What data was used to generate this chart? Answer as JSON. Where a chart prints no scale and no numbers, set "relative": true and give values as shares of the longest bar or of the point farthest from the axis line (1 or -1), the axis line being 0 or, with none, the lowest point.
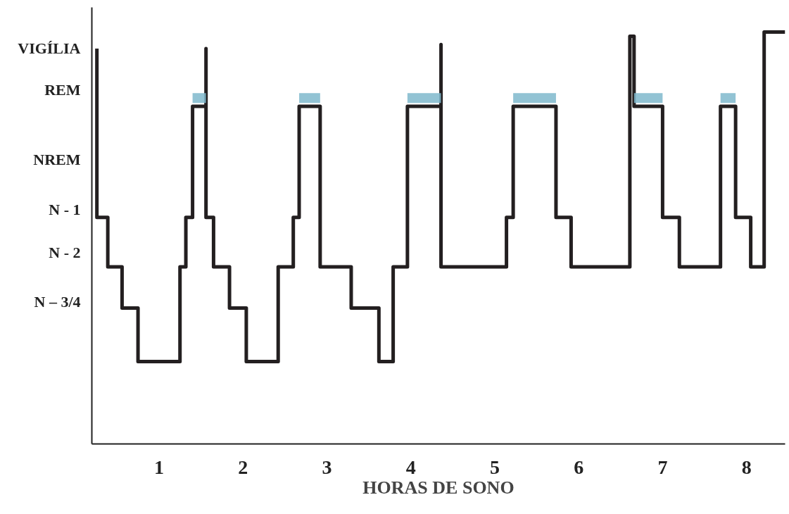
{
  "chart_data": {
    "type": "line",
    "xlabel": "HORAS DE SONO",
    "relative": true,
    "xlim": [
      0.2,
      8.46
    ],
    "xticks": [
      1,
      2,
      3,
      4,
      5,
      6,
      7,
      8
    ],
    "annotations": [
      "VIGÍLIA",
      "REM",
      "NREM",
      "N - 1",
      "N - 2",
      "N – 3/4"
    ],
    "grid": false,
    "marker": "none",
    "line_style": "solid",
    "series": [
      {
        "color": "#231f20",
        "x": [
          0.26,
          0.26,
          0.39,
          0.39,
          0.56,
          0.56,
          0.75,
          0.75,
          1.25,
          1.25,
          1.32,
          1.32,
          1.4,
          1.4,
          1.56,
          1.56,
          1.56,
          1.65,
          1.65,
          1.84,
          1.84,
          2.04,
          2.04,
          2.42,
          2.42,
          2.6,
          2.6,
          2.67,
          2.67,
          2.92,
          2.92,
          3.29,
          3.29,
          3.62,
          3.62,
          3.79,
          3.79,
          3.96,
          3.96,
          4.36,
          4.36,
          4.36,
          5.14,
          5.14,
          5.22,
          5.22,
          5.73,
          5.73,
          5.91,
          5.91,
          6.61,
          6.61,
          6.66,
          6.66,
          7.0,
          7.0,
          7.2,
          7.2,
          7.69,
          7.69,
          7.87,
          7.87,
          8.05,
          8.05,
          8.21,
          8.21,
          8.46
        ],
        "values": [
          0.96,
          0.55,
          0.55,
          0.43,
          0.43,
          0.33,
          0.33,
          0.2,
          0.2,
          0.43,
          0.43,
          0.55,
          0.55,
          0.82,
          0.82,
          0.96,
          0.55,
          0.55,
          0.43,
          0.43,
          0.33,
          0.33,
          0.2,
          0.2,
          0.43,
          0.43,
          0.55,
          0.55,
          0.82,
          0.82,
          0.43,
          0.43,
          0.33,
          0.33,
          0.2,
          0.2,
          0.43,
          0.43,
          0.82,
          0.82,
          0.97,
          0.43,
          0.43,
          0.55,
          0.55,
          0.82,
          0.82,
          0.55,
          0.55,
          0.43,
          0.43,
          0.99,
          0.99,
          0.82,
          0.82,
          0.55,
          0.55,
          0.43,
          0.43,
          0.82,
          0.82,
          0.55,
          0.55,
          0.43,
          0.43,
          1,
          1
        ]
      },
      {
        "color": "#7fb8cc",
        "x": [
          1.4,
          1.56,
          null,
          2.67,
          2.92,
          null,
          3.96,
          4.36,
          null,
          5.22,
          5.73,
          null,
          6.66,
          7.0,
          null,
          7.69,
          7.87
        ],
        "values": [
          0.84,
          0.84,
          null,
          0.84,
          0.84,
          null,
          0.84,
          0.84,
          null,
          0.84,
          0.84,
          null,
          0.84,
          0.84,
          null,
          0.84,
          0.84
        ]
      }
    ]
  }
}
